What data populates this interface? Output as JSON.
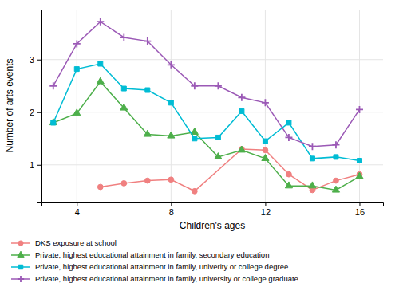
{
  "chart_data": {
    "type": "line",
    "x_label": "Children's ages",
    "y_label": "Number of arts events",
    "xlim": [
      2.5,
      17.0
    ],
    "ylim": [
      0.3,
      3.95
    ],
    "xticks": [
      4,
      8,
      12,
      16
    ],
    "yticks": [
      1,
      2,
      3
    ],
    "grid": true,
    "legend": "bottom",
    "series": [
      {
        "name": "DKS exposure at school",
        "color": "#f08080",
        "marker": "circle",
        "x": [
          5,
          6,
          7,
          8,
          9,
          11,
          12,
          13,
          14,
          15,
          16
        ],
        "values": [
          0.58,
          0.65,
          0.7,
          0.72,
          0.5,
          1.3,
          1.28,
          0.82,
          0.52,
          0.7,
          0.82
        ]
      },
      {
        "name": "Private, highest educational attainment in family, secondary education",
        "color": "#4daf4a",
        "marker": "triangle",
        "x": [
          3,
          4,
          5,
          6,
          7,
          8,
          9,
          10,
          11,
          12,
          13,
          14,
          15,
          16
        ],
        "values": [
          1.8,
          1.98,
          2.58,
          2.08,
          1.58,
          1.55,
          1.62,
          1.15,
          1.28,
          1.12,
          0.6,
          0.6,
          0.52,
          0.78
        ]
      },
      {
        "name": "Private, highest educational attainment in family, univerity or college degree",
        "color": "#00bcd4",
        "marker": "square",
        "x": [
          3,
          4,
          5,
          6,
          7,
          8,
          9,
          10,
          11,
          12,
          13,
          14,
          15,
          16
        ],
        "values": [
          1.8,
          2.82,
          2.92,
          2.45,
          2.42,
          2.18,
          1.5,
          1.52,
          2.02,
          1.45,
          1.8,
          1.12,
          1.15,
          1.08
        ]
      },
      {
        "name": "Private, highest educational attainment in family, university or college graduate",
        "color": "#9b59b6",
        "marker": "plus",
        "x": [
          3,
          4,
          5,
          6,
          7,
          8,
          9,
          10,
          11,
          12,
          13,
          14,
          15,
          16
        ],
        "values": [
          2.5,
          3.3,
          3.72,
          3.42,
          3.35,
          2.9,
          2.5,
          2.5,
          2.28,
          2.18,
          1.52,
          1.35,
          1.38,
          2.05
        ]
      }
    ]
  }
}
